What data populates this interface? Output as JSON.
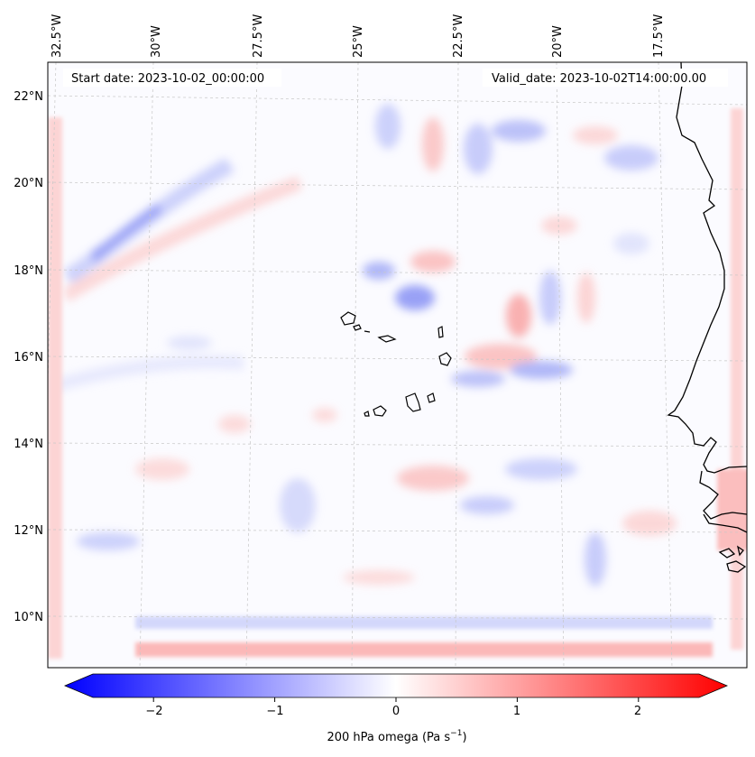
{
  "header": {
    "start_date": "Start date: 2023-10-02_00:00:00",
    "valid_date": "Valid_date: 2023-10-02T14:00:00.00"
  },
  "map": {
    "variable": "200 hPa omega",
    "longitude_labels": [
      "32.5°W",
      "30°W",
      "27.5°W",
      "25°W",
      "22.5°W",
      "20°W",
      "17.5°W"
    ],
    "latitude_labels": [
      "22°N",
      "20°N",
      "18°N",
      "16°N",
      "14°N",
      "12°N",
      "10°N"
    ],
    "lon_range": [
      -33,
      -15.5
    ],
    "lat_range": [
      8.9,
      22.7
    ],
    "features": [
      "Cape Verde islands",
      "West African coastline"
    ]
  },
  "colorbar": {
    "label": "200 hPa omega (Pa s",
    "label_unit_exponent": "−1",
    "label_close": ")",
    "ticks": [
      "−2",
      "−1",
      "0",
      "1",
      "2"
    ],
    "tick_values": [
      -2,
      -1,
      0,
      1,
      2
    ],
    "range": [
      -2.5,
      2.5
    ],
    "extend": "both",
    "colormap": "bwr",
    "color_low": "#0000ff",
    "color_mid": "#ffffff",
    "color_high": "#ff0000"
  }
}
